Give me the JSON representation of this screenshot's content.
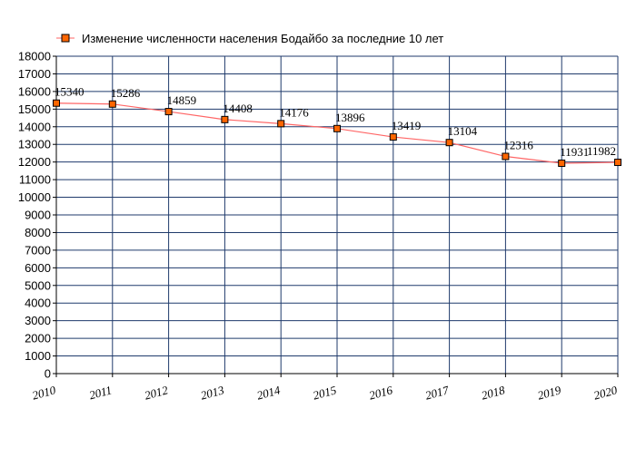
{
  "chart_data": {
    "type": "line",
    "title": "",
    "xlabel": "",
    "ylabel": "",
    "x": [
      "2010",
      "2011",
      "2012",
      "2013",
      "2014",
      "2015",
      "2016",
      "2017",
      "2018",
      "2019",
      "2020"
    ],
    "series": [
      {
        "name": "Изменение численности населения Бодайбо за последние 10 лет",
        "values": [
          15340,
          15286,
          14859,
          14408,
          14176,
          13896,
          13419,
          13104,
          12316,
          11931,
          11982
        ],
        "labels": [
          "15340",
          "15286",
          "14859",
          "14408",
          "14176",
          "13896",
          "13419",
          "13104",
          "12316",
          "11931",
          "11982"
        ]
      }
    ],
    "ylim": [
      0,
      18000
    ],
    "ytick_step": 1000,
    "grid": true,
    "legend_position": "top-left",
    "colors": {
      "line": "#ff6666",
      "marker_fill": "#ff6600",
      "marker_stroke": "#000000",
      "grid": "#1f3a6b",
      "axis": "#000000"
    }
  }
}
